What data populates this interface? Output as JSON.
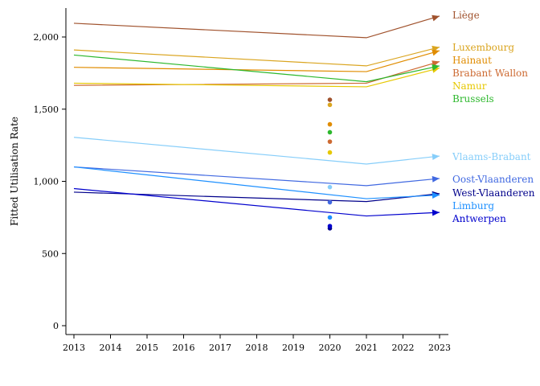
{
  "chart_data": {
    "type": "line",
    "title": "",
    "xlabel": "",
    "ylabel": "Fitted Utilisation Rate",
    "xlim": [
      2013,
      2023
    ],
    "ylim": [
      0,
      2200
    ],
    "x_ticks": [
      "2013",
      "2014",
      "2015",
      "2016",
      "2017",
      "2018",
      "2019",
      "2020",
      "2021",
      "2022",
      "2023"
    ],
    "y_ticks": [
      {
        "value": 0,
        "label": "0"
      },
      {
        "value": 500,
        "label": "500"
      },
      {
        "value": 1000,
        "label": "1,000"
      },
      {
        "value": 1500,
        "label": "1,500"
      },
      {
        "value": 2000,
        "label": "2,000"
      }
    ],
    "grid": false,
    "legend": "labels at line ends (right)",
    "series": [
      {
        "name": "Liège",
        "color": "#a0522d",
        "x": [
          2013,
          2021,
          2023
        ],
        "y": [
          2095,
          1995,
          2145
        ],
        "point_2020": 1565
      },
      {
        "name": "Luxembourg",
        "color": "#daa520",
        "x": [
          2013,
          2021,
          2023
        ],
        "y": [
          1910,
          1800,
          1930
        ],
        "point_2020": 1530
      },
      {
        "name": "Hainaut",
        "color": "#e08c00",
        "x": [
          2013,
          2021,
          2023
        ],
        "y": [
          1790,
          1760,
          1905
        ],
        "point_2020": 1395
      },
      {
        "name": "Brabant Wallon",
        "color": "#cd6a32",
        "x": [
          2013,
          2021,
          2023
        ],
        "y": [
          1665,
          1680,
          1830
        ],
        "point_2020": 1275
      },
      {
        "name": "Namur",
        "color": "#e6c800",
        "x": [
          2013,
          2021,
          2023
        ],
        "y": [
          1680,
          1655,
          1785
        ],
        "point_2020": 1200
      },
      {
        "name": "Brussels",
        "color": "#2db82d",
        "x": [
          2013,
          2021,
          2023
        ],
        "y": [
          1875,
          1690,
          1800
        ],
        "point_2020": 1340
      },
      {
        "name": "Vlaams-Brabant",
        "color": "#87cefa",
        "x": [
          2013,
          2021,
          2023
        ],
        "y": [
          1305,
          1120,
          1175
        ],
        "point_2020": 960
      },
      {
        "name": "Oost-Vlaanderen",
        "color": "#4169e1",
        "x": [
          2013,
          2021,
          2023
        ],
        "y": [
          1100,
          970,
          1020
        ],
        "point_2020": 855
      },
      {
        "name": "West-Vlaanderen",
        "color": "#00008b",
        "x": [
          2013,
          2021,
          2023
        ],
        "y": [
          925,
          860,
          915
        ],
        "point_2020": 675
      },
      {
        "name": "Limburg",
        "color": "#1e90ff",
        "x": [
          2013,
          2021,
          2023
        ],
        "y": [
          1100,
          880,
          905
        ],
        "point_2020": 750
      },
      {
        "name": "Antwerpen",
        "color": "#0000cd",
        "x": [
          2013,
          2021,
          2023
        ],
        "y": [
          950,
          760,
          785
        ],
        "point_2020": 690
      }
    ]
  }
}
